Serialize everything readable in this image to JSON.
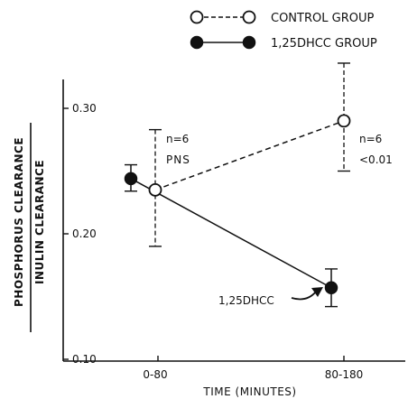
{
  "chart_data": {
    "type": "line",
    "xlabel": "TIME (MINUTES)",
    "ylabel": {
      "numerator": "PHOSPHORUS   CLEARANCE",
      "denominator": "INULIN         CLEARANCE"
    },
    "categories": [
      "0-80",
      "80-180"
    ],
    "ylim": [
      0.1,
      0.33
    ],
    "yticks": [
      {
        "value": 0.1,
        "label": "0.10"
      },
      {
        "value": 0.2,
        "label": "0.20"
      },
      {
        "value": 0.3,
        "label": "0.30"
      }
    ],
    "grid": false,
    "legend_position": "top-right",
    "series": [
      {
        "name": "CONTROL GROUP",
        "marker": "open-circle",
        "line": "dashed",
        "color": "#111111",
        "values": [
          0.235,
          0.29
        ],
        "error_low": [
          0.19,
          0.25
        ],
        "error_high": [
          0.283,
          0.336
        ]
      },
      {
        "name": "1,25DHCC GROUP",
        "marker": "filled-circle",
        "line": "solid",
        "color": "#111111",
        "values": [
          0.244,
          0.157
        ],
        "error_low": [
          0.234,
          0.142
        ],
        "error_high": [
          0.255,
          0.172
        ]
      }
    ],
    "annotations": [
      {
        "lines": [
          "n=6",
          "PNS"
        ]
      },
      {
        "lines": [
          "n=6",
          "<0.01"
        ]
      },
      {
        "lines": [
          "1,25DHCC"
        ]
      }
    ]
  }
}
